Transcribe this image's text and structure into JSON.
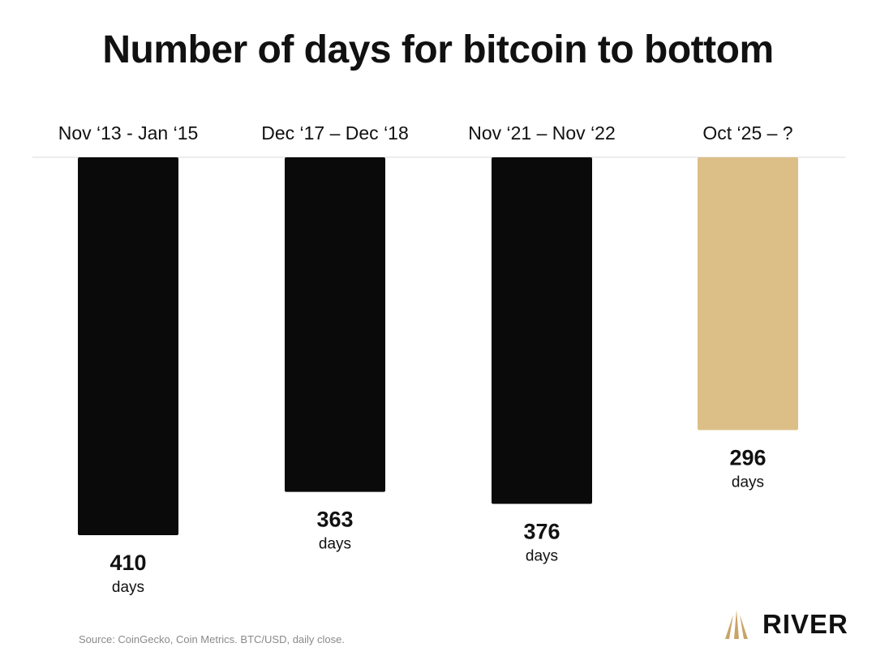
{
  "title": "Number of days for bitcoin to bottom",
  "source": "Source: CoinGecko, Coin Metrics. BTC/USD, daily close.",
  "brand": {
    "name": "RIVER",
    "icon": "river-logo-icon",
    "color": "#c9a466"
  },
  "colors": {
    "past_bar": "#0a0a0a",
    "current_bar": "#dcbf87",
    "baseline": "#d9d9d9"
  },
  "chart_data": {
    "type": "bar",
    "orientation": "vertical-downward",
    "title": "Number of days for bitcoin to bottom",
    "xlabel": "",
    "ylabel": "",
    "unit": "days",
    "categories": [
      "Nov ‘13 - Jan ‘15",
      "Dec ‘17 – Dec ‘18",
      "Nov ‘21 – Nov ‘22",
      "Oct ‘25 – ?"
    ],
    "values": [
      410,
      363,
      376,
      296
    ],
    "highlight": [
      false,
      false,
      false,
      true
    ],
    "ylim": [
      0,
      410
    ],
    "grid": false,
    "legend": "none"
  }
}
